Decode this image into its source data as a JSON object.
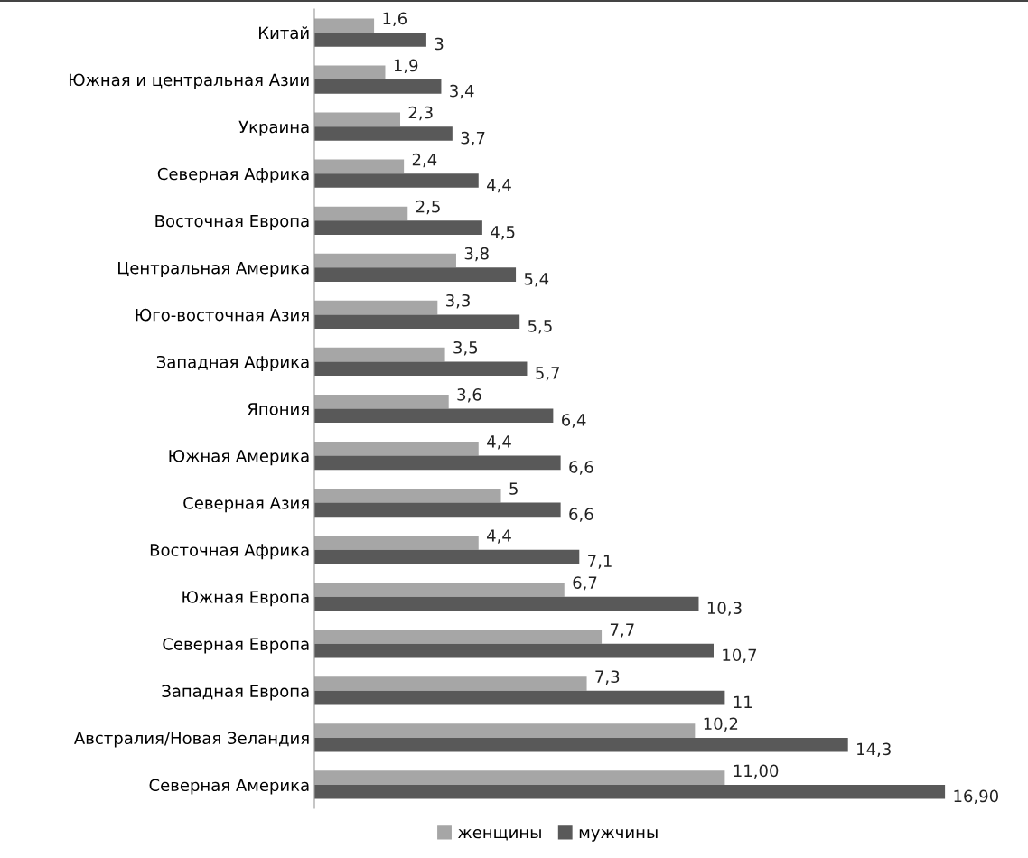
{
  "chart_data": {
    "type": "bar",
    "orientation": "horizontal",
    "legend": "bottom",
    "grid": false,
    "tick_labels": "y",
    "categories": [
      "Китай",
      "Южная и центральная Азии",
      "Украина",
      "Северная Африка",
      "Восточная Европа",
      "Центральная Америка",
      "Юго-восточная Азия",
      "Западная Африка",
      "Япония",
      "Южная Америка",
      "Северная Азия",
      "Восточная Африка",
      "Южная Европа",
      "Северная Европа",
      "Западная Европа",
      "Австралия/Новая Зеландия",
      "Северная Америка"
    ],
    "series": [
      {
        "name": "женщины",
        "color": "#a6a6a6",
        "values": [
          1.6,
          1.9,
          2.3,
          2.4,
          2.5,
          3.8,
          3.3,
          3.5,
          3.6,
          4.4,
          5,
          4.4,
          6.7,
          7.7,
          7.3,
          10.2,
          11.0
        ],
        "value_labels": [
          "1,6",
          "1,9",
          "2,3",
          "2,4",
          "2,5",
          "3,8",
          "3,3",
          "3,5",
          "3,6",
          "4,4",
          "5",
          "4,4",
          "6,7",
          "7,7",
          "7,3",
          "10,2",
          "11,00"
        ]
      },
      {
        "name": "мужчины",
        "color": "#595959",
        "values": [
          3,
          3.4,
          3.7,
          4.4,
          4.5,
          5.4,
          5.5,
          5.7,
          6.4,
          6.6,
          6.6,
          7.1,
          10.3,
          10.7,
          11,
          14.3,
          16.9
        ],
        "value_labels": [
          "3",
          "3,4",
          "3,7",
          "4,4",
          "4,5",
          "5,4",
          "5,5",
          "5,7",
          "6,4",
          "6,6",
          "6,6",
          "7,1",
          "10,3",
          "10,7",
          "11",
          "14,3",
          "16,90"
        ]
      }
    ]
  }
}
